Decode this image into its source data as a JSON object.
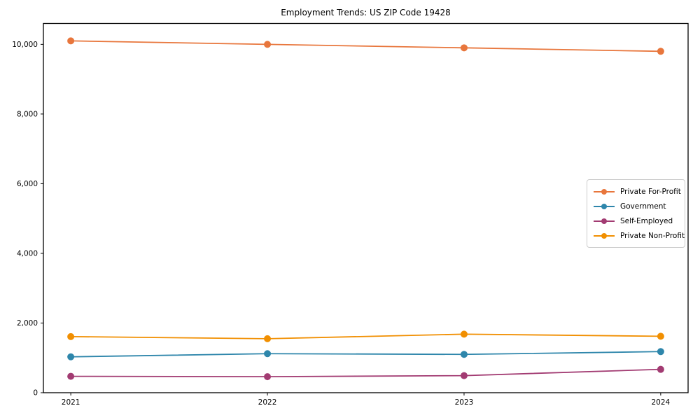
{
  "chart_data": {
    "type": "line",
    "title": "Employment Trends: US ZIP Code 19428",
    "x": [
      "2021",
      "2022",
      "2023",
      "2024"
    ],
    "series": [
      {
        "name": "Private For-Profit",
        "color": "#E8763C",
        "values": [
          10100,
          10000,
          9900,
          9800
        ]
      },
      {
        "name": "Government",
        "color": "#2E86AB",
        "values": [
          1030,
          1120,
          1100,
          1180
        ]
      },
      {
        "name": "Self-Employed",
        "color": "#A23B72",
        "values": [
          470,
          460,
          490,
          670
        ]
      },
      {
        "name": "Private Non-Profit",
        "color": "#F18F01",
        "values": [
          1610,
          1550,
          1680,
          1620
        ]
      }
    ],
    "xlabel": "",
    "ylabel": "",
    "ylim": [
      0,
      10600
    ],
    "yticks": [
      0,
      2000,
      4000,
      6000,
      8000,
      10000
    ],
    "ytick_labels": [
      "0",
      "2,000",
      "4,000",
      "6,000",
      "8,000",
      "10,000"
    ],
    "grid": false,
    "legend_position": "center-right",
    "colors": {
      "axis": "#000000",
      "text": "#000000",
      "legend_border": "#cccccc",
      "background": "#ffffff"
    }
  }
}
